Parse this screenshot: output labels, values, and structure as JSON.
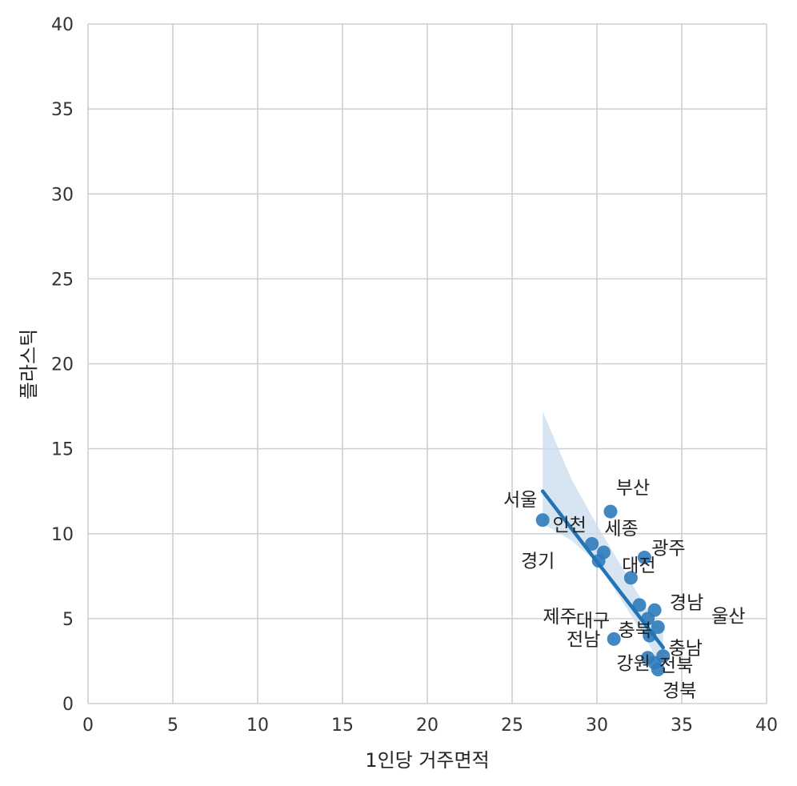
{
  "chart_data": {
    "type": "scatter",
    "xlabel": "1인당 거주면적",
    "ylabel": "플라스틱",
    "xlim": [
      0,
      40
    ],
    "ylim": [
      0,
      40
    ],
    "xticks": [
      0,
      5,
      10,
      15,
      20,
      25,
      30,
      35,
      40
    ],
    "yticks": [
      0,
      5,
      10,
      15,
      20,
      25,
      30,
      35,
      40
    ],
    "grid": true,
    "colors": {
      "points": "#2f7bbb",
      "line": "#2374b5",
      "band": "#c9dcee",
      "grid": "#cfcfcf"
    },
    "points": [
      {
        "label": "서울",
        "x": 26.8,
        "y": 10.8
      },
      {
        "label": "부산",
        "x": 30.8,
        "y": 11.3
      },
      {
        "label": "인천",
        "x": 29.7,
        "y": 9.4
      },
      {
        "label": "세종",
        "x": 30.4,
        "y": 8.9
      },
      {
        "label": "광주",
        "x": 32.8,
        "y": 8.6
      },
      {
        "label": "대전",
        "x": 32.0,
        "y": 7.4
      },
      {
        "label": "경기",
        "x": 30.1,
        "y": 8.4
      },
      {
        "label": "대구",
        "x": 32.5,
        "y": 5.8
      },
      {
        "label": "경남",
        "x": 33.4,
        "y": 5.5
      },
      {
        "label": "울산",
        "x": 33.6,
        "y": 4.5
      },
      {
        "label": "제주",
        "x": 33.0,
        "y": 5.0
      },
      {
        "label": "충북",
        "x": 33.1,
        "y": 4.0
      },
      {
        "label": "전남",
        "x": 31.0,
        "y": 3.8
      },
      {
        "label": "충남",
        "x": 33.9,
        "y": 2.8
      },
      {
        "label": "강원",
        "x": 33.0,
        "y": 2.7
      },
      {
        "label": "전북",
        "x": 33.4,
        "y": 2.4
      },
      {
        "label": "경북",
        "x": 33.6,
        "y": 2.0
      }
    ],
    "regression": {
      "x": [
        26.8,
        33.9
      ],
      "y": [
        12.5,
        3.3
      ],
      "ci_upper": [
        [
          26.8,
          17.2
        ],
        [
          28.5,
          13.2
        ],
        [
          30.0,
          10.5
        ],
        [
          31.5,
          8.0
        ],
        [
          33.0,
          5.5
        ],
        [
          33.9,
          4.5
        ]
      ],
      "ci_lower": [
        [
          33.9,
          1.9
        ],
        [
          33.0,
          3.6
        ],
        [
          31.5,
          6.0
        ],
        [
          30.0,
          8.3
        ],
        [
          28.5,
          9.6
        ],
        [
          26.8,
          10.6
        ]
      ]
    }
  }
}
